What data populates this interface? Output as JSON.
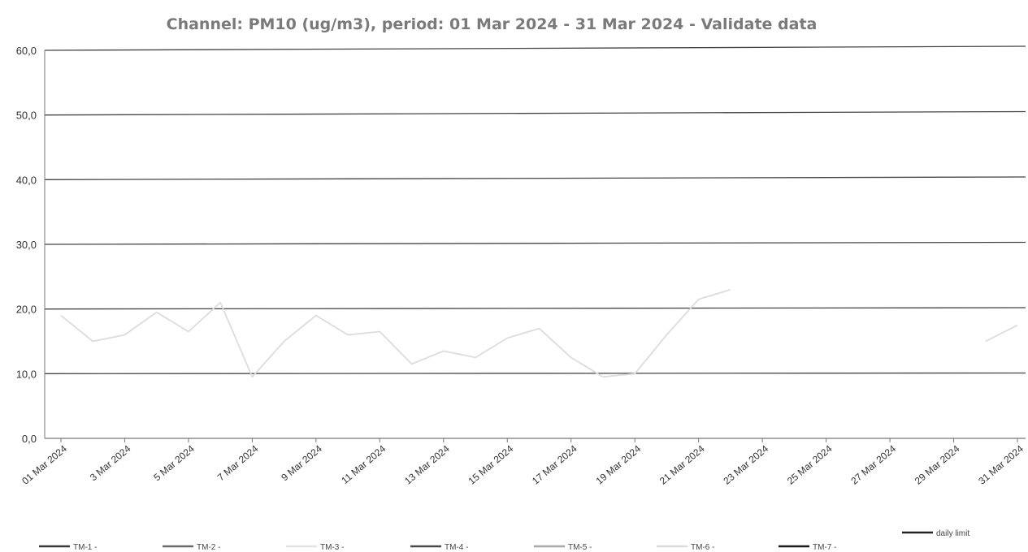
{
  "chart_data": {
    "type": "line",
    "title": "Channel: PM10 (ug/m3), period: 01 Mar 2024 - 31 Mar 2024 - Validate data",
    "xlabel": "",
    "ylabel": "",
    "ylim": [
      0,
      60
    ],
    "yticks": [
      "0,0",
      "10,0",
      "20,0",
      "30,0",
      "40,0",
      "50,0",
      "60,0"
    ],
    "xticks": [
      "01 Mar 2024",
      "3 Mar 2024",
      "5 Mar 2024",
      "7 Mar 2024",
      "9 Mar 2024",
      "11 Mar 2024",
      "13 Mar 2024",
      "15 Mar 2024",
      "17 Mar 2024",
      "19 Mar 2024",
      "21 Mar 2024",
      "23 Mar 2024",
      "25 Mar 2024",
      "27 Mar 2024",
      "29 Mar 2024",
      "31 Mar 2024"
    ],
    "xtick_days": [
      1,
      3,
      5,
      7,
      9,
      11,
      13,
      15,
      17,
      19,
      21,
      23,
      25,
      27,
      29,
      31
    ],
    "grid": true,
    "legend_position": "bottom",
    "series": [
      {
        "name": "TM-1 -",
        "color": "#3a3a3a",
        "x": [],
        "y": []
      },
      {
        "name": "TM-2 -",
        "color": "#6a6a6a",
        "x": [],
        "y": []
      },
      {
        "name": "TM-3 -",
        "color": "#e4e4e4",
        "x": [],
        "y": []
      },
      {
        "name": "TM-4 -",
        "color": "#4a4a4a",
        "x": [],
        "y": []
      },
      {
        "name": "TM-5 -",
        "color": "#a8a8a8",
        "x": [],
        "y": []
      },
      {
        "name": "TM-6 -",
        "color": "#dcdcdc",
        "x": [
          "01 Mar 2024",
          "02 Mar 2024",
          "03 Mar 2024",
          "04 Mar 2024",
          "05 Mar 2024",
          "06 Mar 2024",
          "07 Mar 2024",
          "08 Mar 2024",
          "09 Mar 2024",
          "10 Mar 2024",
          "11 Mar 2024",
          "12 Mar 2024",
          "13 Mar 2024",
          "14 Mar 2024",
          "15 Mar 2024",
          "16 Mar 2024",
          "17 Mar 2024",
          "18 Mar 2024",
          "19 Mar 2024",
          "20 Mar 2024",
          "21 Mar 2024",
          "22 Mar 2024",
          "30 Mar 2024",
          "31 Mar 2024"
        ],
        "y": [
          19.0,
          15.0,
          16.0,
          19.5,
          16.5,
          21.0,
          9.5,
          15.0,
          19.0,
          16.0,
          16.5,
          11.5,
          13.5,
          12.5,
          15.5,
          17.0,
          12.5,
          9.5,
          10.0,
          16.0,
          21.5,
          23.0,
          15.0,
          17.5
        ]
      },
      {
        "name": "TM-7 -",
        "color": "#1a1a1a",
        "x": [],
        "y": []
      },
      {
        "name": "daily limit",
        "color": "#222222",
        "x": [
          "01 Mar 2024",
          "31 Mar 2024"
        ],
        "y": [
          50,
          50
        ]
      }
    ]
  }
}
